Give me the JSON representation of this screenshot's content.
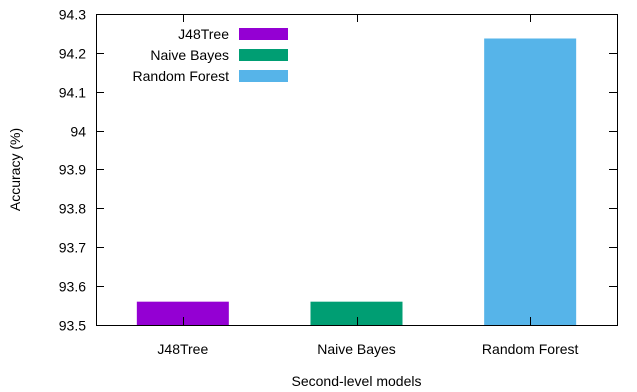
{
  "chart_data": {
    "type": "bar",
    "title": "",
    "xlabel": "Second-level models",
    "ylabel": "Accuracy (%)",
    "ylim": [
      93.5,
      94.3
    ],
    "yticks": [
      93.5,
      93.6,
      93.7,
      93.8,
      93.9,
      94,
      94.1,
      94.2,
      94.3
    ],
    "ytick_labels": [
      "93.5",
      "93.6",
      "93.7",
      "93.8",
      "93.9",
      "94",
      "94.1",
      "94.2",
      "94.3"
    ],
    "categories": [
      "J48Tree",
      "Naive Bayes",
      "Random Forest"
    ],
    "series": [
      {
        "name": "J48Tree",
        "values": [
          93.56,
          null,
          null
        ],
        "color": "#9400d3"
      },
      {
        "name": "Naive Bayes",
        "values": [
          null,
          93.56,
          null
        ],
        "color": "#009e73"
      },
      {
        "name": "Random Forest",
        "values": [
          null,
          null,
          94.237
        ],
        "color": "#56b4e9"
      }
    ],
    "grid": false,
    "legend_position": "top-left"
  }
}
